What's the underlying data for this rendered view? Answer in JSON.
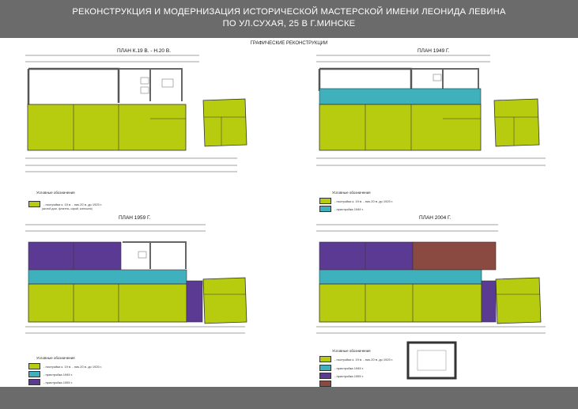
{
  "header": {
    "title_line1": "РЕКОНСТРУКЦИЯ И МОДЕРНИЗАЦИЯ ИСТОРИЧЕСКОЙ МАСТЕРСКОЙ ИМЕНИ ЛЕОНИДА ЛЕВИНА",
    "title_line2": "ПО УЛ.СУХАЯ, 25 В Г.МИНСКЕ"
  },
  "subtitle": "ГРАФИЧЕСКИЕ РЕКОНСТРУКЦИИ",
  "colors": {
    "c19": "#b7cc0f",
    "p1949": "#3fb1bd",
    "p1959": "#5a3a93",
    "p2004": "#8a4a42",
    "frame": "#6b6b6b"
  },
  "plans": {
    "p1": {
      "title": "ПЛАН К.19 В. - Н.20 В."
    },
    "p2": {
      "title": "ПЛАН 1949 Г."
    },
    "p3": {
      "title": "ПЛАН 1959 Г."
    },
    "p4": {
      "title": "ПЛАН 2004 Г."
    }
  },
  "legend": {
    "title": "Условные обозначения",
    "c19": "- постройки к. 19 в. - нач.20 в. до 1920 г.",
    "c19_note": "(жилой дом, флигель, сарай, конюшня)",
    "p1949": "- пристройка 1949 г.",
    "p1959": "- пристройка 1959 г."
  }
}
